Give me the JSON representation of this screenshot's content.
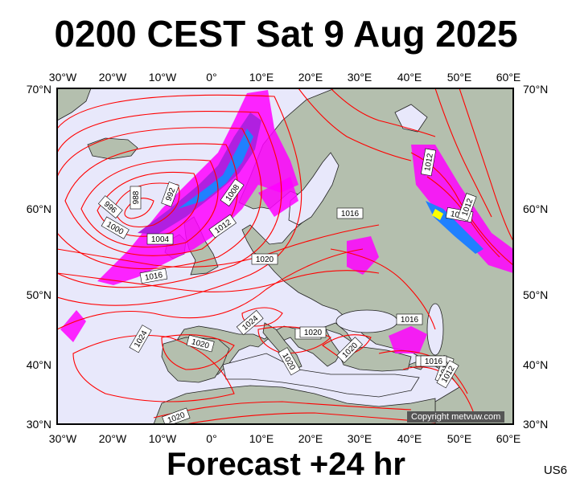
{
  "title": "0200 CEST Sat 9 Aug 2025",
  "footer": "Forecast +24 hr",
  "model_code": "US6",
  "copyright": "Copyright metvuw.com",
  "lon_labels": [
    "30°W",
    "20°W",
    "10°W",
    "0°",
    "10°E",
    "20°E",
    "30°E",
    "40°E",
    "50°E",
    "60°E"
  ],
  "lat_labels": [
    "70°N",
    "60°N",
    "50°N",
    "40°N",
    "30°N"
  ],
  "isobar_labels": [
    "988",
    "992",
    "996",
    "1000",
    "1004",
    "1008",
    "1012",
    "1016",
    "1020",
    "1024",
    "1008",
    "1012",
    "1016",
    "1020",
    "1016",
    "1016",
    "1012",
    "1020",
    "1020",
    "1020",
    "1024",
    "1020",
    "1020",
    "1016",
    "1012",
    "1012"
  ],
  "colors": {
    "sea": "#e8e8fb",
    "land": "#b4bfae",
    "isobar": "#ff0000",
    "precip_light": "#ff00ff",
    "precip_mid": "#b020e0",
    "precip_heavy": "#2080ff",
    "precip_extreme": "#ffff00"
  }
}
